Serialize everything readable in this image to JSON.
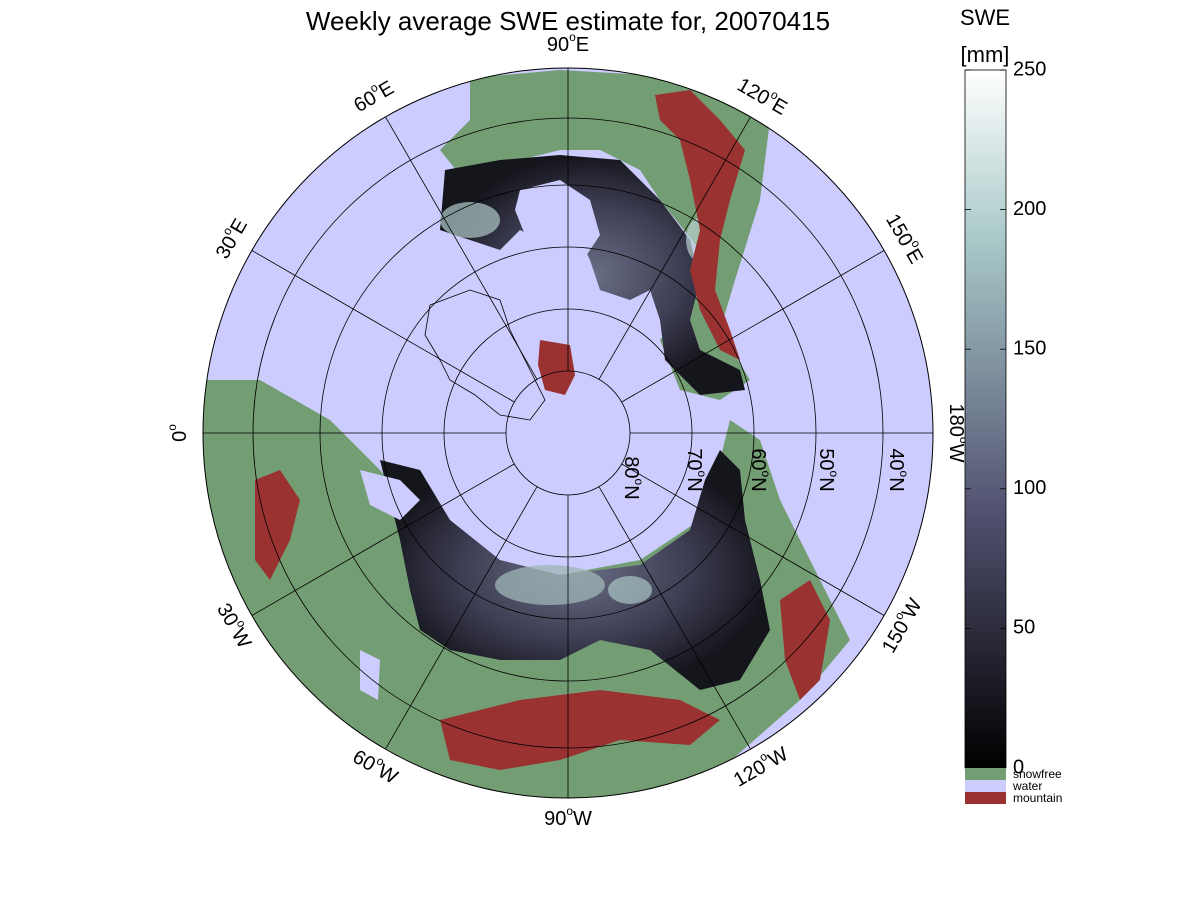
{
  "title": "Weekly average SWE estimate for, 20070415",
  "map": {
    "projection": "north-polar",
    "parallels_printed": [
      {
        "deg": "80",
        "suffix": "N"
      },
      {
        "deg": "70",
        "suffix": "N"
      },
      {
        "deg": "60",
        "suffix": "N"
      },
      {
        "deg": "50",
        "suffix": "N"
      },
      {
        "deg": "40",
        "suffix": "N"
      }
    ],
    "meridians_printed": [
      {
        "deg": "0",
        "suffix": "",
        "value": 0
      },
      {
        "deg": "30",
        "suffix": "E",
        "value": 30
      },
      {
        "deg": "60",
        "suffix": "E",
        "value": 60
      },
      {
        "deg": "90",
        "suffix": "E",
        "value": 90
      },
      {
        "deg": "120",
        "suffix": "E",
        "value": 120
      },
      {
        "deg": "150",
        "suffix": "E",
        "value": 150
      },
      {
        "deg": "180",
        "suffix": "W",
        "value": 180
      },
      {
        "deg": "150",
        "suffix": "W",
        "value": -150
      },
      {
        "deg": "120",
        "suffix": "W",
        "value": -120
      },
      {
        "deg": "90",
        "suffix": "W",
        "value": -90
      },
      {
        "deg": "60",
        "suffix": "W",
        "value": -60
      },
      {
        "deg": "30",
        "suffix": "W",
        "value": -30
      }
    ],
    "colors": {
      "water": "#ccccff",
      "snowfree": "#739d73",
      "mountain": "#9b3232",
      "grid": "#000000"
    }
  },
  "colorbar": {
    "title_line1": "SWE",
    "title_line2": "[mm]",
    "min": 0,
    "max": 250,
    "ticks": [
      "0",
      "50",
      "100",
      "150",
      "200",
      "250"
    ],
    "tick_values": [
      0,
      50,
      100,
      150,
      200,
      250
    ],
    "colormap": "bone",
    "categories": [
      {
        "label": "snowfree",
        "color": "#739d73"
      },
      {
        "label": "water",
        "color": "#ccccff"
      },
      {
        "label": "mountain",
        "color": "#9b3232"
      }
    ]
  }
}
